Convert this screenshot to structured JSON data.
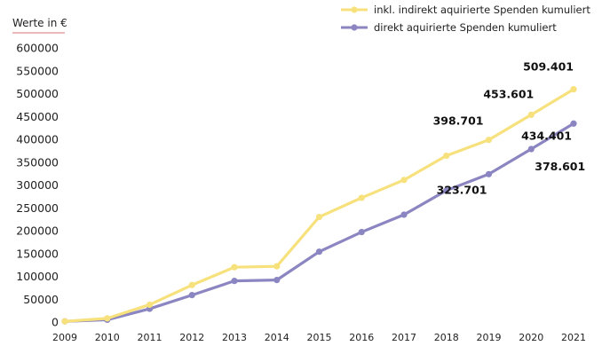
{
  "chart_data": {
    "type": "line",
    "ylabel": "Werte in €",
    "x": [
      "2009",
      "2010",
      "2011",
      "2012",
      "2013",
      "2014",
      "2015",
      "2016",
      "2017",
      "2018",
      "2019",
      "2020",
      "2021"
    ],
    "ylim": [
      0,
      600000
    ],
    "yticks": [
      "0",
      "50000",
      "100000",
      "150000",
      "200000",
      "250000",
      "300000",
      "350000",
      "400000",
      "450000",
      "500000",
      "550000",
      "600000"
    ],
    "grid": false,
    "legend_position": "top-right",
    "series": [
      {
        "name": "inkl. indirekt aquirierte Spenden kumuliert",
        "color": "#f7e17c",
        "values": [
          1500,
          8000,
          38000,
          81000,
          120000,
          122000,
          230000,
          272000,
          311000,
          364000,
          398701,
          453601,
          509401
        ],
        "data_labels": [
          null,
          null,
          null,
          null,
          null,
          null,
          null,
          null,
          null,
          null,
          "398.701",
          "453.601",
          "509.401"
        ]
      },
      {
        "name": "direkt aquirierte Spenden kumuliert",
        "color": "#8b86c1",
        "values": [
          1500,
          5000,
          29000,
          59000,
          90000,
          92000,
          154000,
          197000,
          235000,
          288000,
          323701,
          378601,
          434401
        ],
        "data_labels": [
          null,
          null,
          null,
          null,
          null,
          null,
          null,
          null,
          null,
          null,
          "323.701",
          "378.601",
          "434.401"
        ]
      }
    ]
  }
}
